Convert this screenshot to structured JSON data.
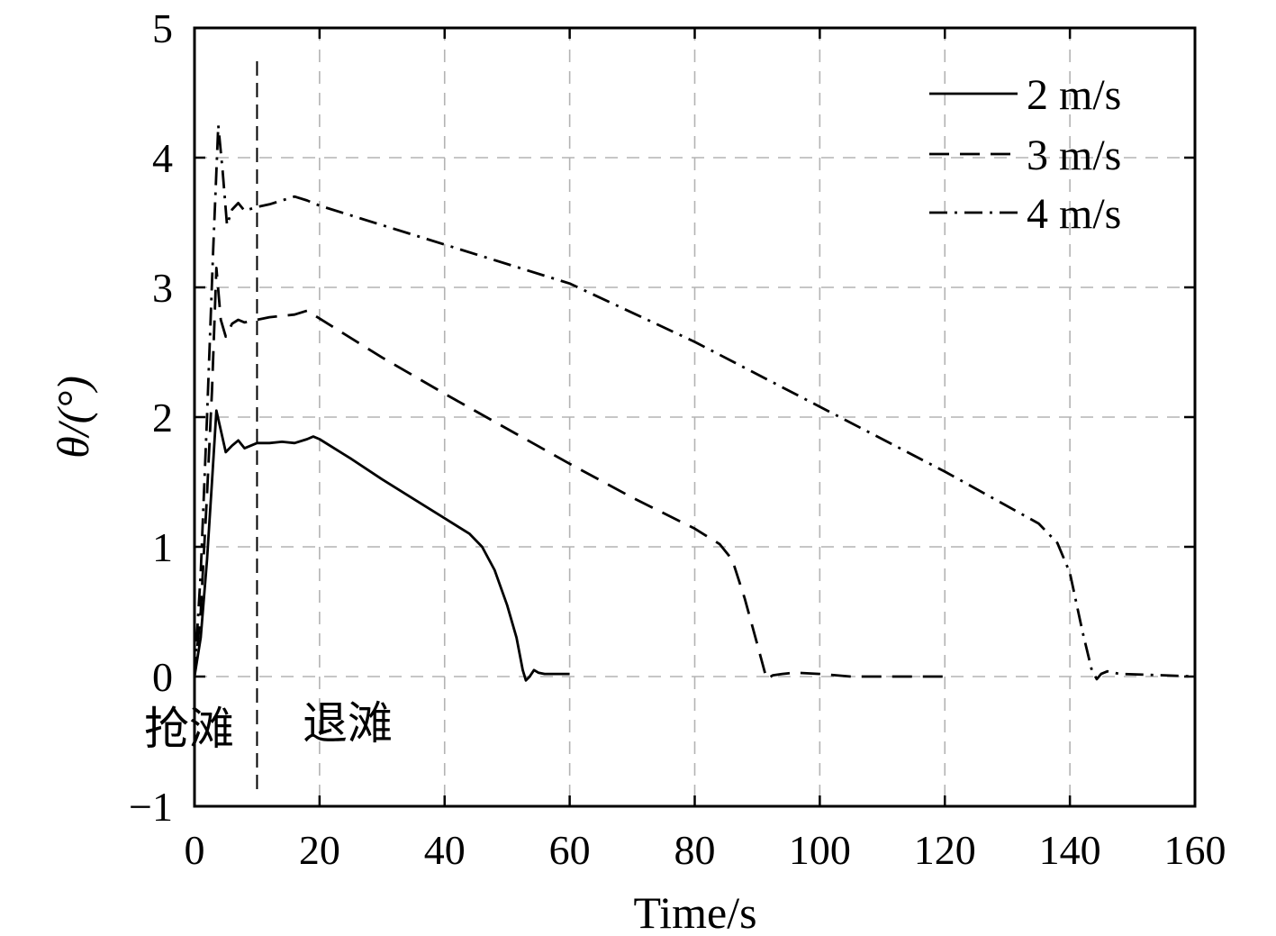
{
  "chart_data": {
    "type": "line",
    "title": "",
    "xlabel": "Time/s",
    "ylabel": "θ/(°)",
    "xlim": [
      0,
      160
    ],
    "ylim": [
      -1,
      5
    ],
    "xticks": [
      0,
      20,
      40,
      60,
      80,
      100,
      120,
      140,
      160
    ],
    "yticks": [
      -1,
      0,
      1,
      2,
      3,
      4,
      5
    ],
    "xtick_labels": [
      "0",
      "20",
      "40",
      "60",
      "80",
      "100",
      "120",
      "140",
      "160"
    ],
    "ytick_labels": [
      "−1",
      "0",
      "1",
      "2",
      "3",
      "4",
      "5"
    ],
    "grid": true,
    "legend_position": "top-right",
    "annotations": {
      "divider_x": 10,
      "phase_1_label": "抢滩",
      "phase_2_label": "退滩"
    },
    "series": [
      {
        "name": "2 m/s",
        "line_style": "solid",
        "color": "#000000",
        "points": [
          [
            0,
            0
          ],
          [
            1,
            0.3
          ],
          [
            2,
            0.9
          ],
          [
            2.8,
            1.5
          ],
          [
            3.5,
            2.05
          ],
          [
            4.2,
            1.9
          ],
          [
            5,
            1.73
          ],
          [
            6,
            1.78
          ],
          [
            7,
            1.82
          ],
          [
            8,
            1.76
          ],
          [
            10,
            1.8
          ],
          [
            12,
            1.8
          ],
          [
            14,
            1.81
          ],
          [
            16,
            1.8
          ],
          [
            18,
            1.83
          ],
          [
            19,
            1.85
          ],
          [
            20,
            1.83
          ],
          [
            25,
            1.68
          ],
          [
            30,
            1.52
          ],
          [
            35,
            1.37
          ],
          [
            40,
            1.22
          ],
          [
            44,
            1.1
          ],
          [
            46,
            1.0
          ],
          [
            48,
            0.82
          ],
          [
            50,
            0.55
          ],
          [
            51.5,
            0.3
          ],
          [
            52.5,
            0.05
          ],
          [
            53,
            -0.03
          ],
          [
            53.6,
            0.0
          ],
          [
            54.3,
            0.05
          ],
          [
            55,
            0.03
          ],
          [
            56,
            0.02
          ],
          [
            60,
            0.02
          ]
        ]
      },
      {
        "name": "3 m/s",
        "line_style": "dashed",
        "color": "#000000",
        "points": [
          [
            0,
            0
          ],
          [
            1,
            0.5
          ],
          [
            2,
            1.4
          ],
          [
            2.8,
            2.2
          ],
          [
            3.5,
            3.15
          ],
          [
            4.2,
            2.75
          ],
          [
            5,
            2.62
          ],
          [
            6,
            2.72
          ],
          [
            7,
            2.75
          ],
          [
            8,
            2.73
          ],
          [
            10,
            2.75
          ],
          [
            12,
            2.77
          ],
          [
            14,
            2.78
          ],
          [
            16,
            2.79
          ],
          [
            18,
            2.82
          ],
          [
            20,
            2.76
          ],
          [
            30,
            2.46
          ],
          [
            40,
            2.18
          ],
          [
            50,
            1.91
          ],
          [
            60,
            1.64
          ],
          [
            70,
            1.38
          ],
          [
            80,
            1.14
          ],
          [
            84,
            1.02
          ],
          [
            86,
            0.9
          ],
          [
            88,
            0.6
          ],
          [
            90,
            0.25
          ],
          [
            91.5,
            -0.02
          ],
          [
            92.5,
            0.01
          ],
          [
            94,
            0.02
          ],
          [
            96,
            0.03
          ],
          [
            100,
            0.02
          ],
          [
            105,
            0.0
          ],
          [
            110,
            0.0
          ],
          [
            120,
            0.0
          ]
        ]
      },
      {
        "name": "4 m/s",
        "line_style": "dashdot",
        "color": "#000000",
        "points": [
          [
            0,
            0
          ],
          [
            1,
            0.8
          ],
          [
            2,
            2.0
          ],
          [
            3,
            3.3
          ],
          [
            3.8,
            4.25
          ],
          [
            4.5,
            3.9
          ],
          [
            5.2,
            3.48
          ],
          [
            6,
            3.6
          ],
          [
            7,
            3.65
          ],
          [
            8,
            3.59
          ],
          [
            10,
            3.62
          ],
          [
            12,
            3.64
          ],
          [
            14,
            3.67
          ],
          [
            16,
            3.7
          ],
          [
            18,
            3.67
          ],
          [
            20,
            3.63
          ],
          [
            40,
            3.33
          ],
          [
            60,
            3.03
          ],
          [
            80,
            2.58
          ],
          [
            100,
            2.08
          ],
          [
            120,
            1.58
          ],
          [
            135,
            1.18
          ],
          [
            138,
            1.03
          ],
          [
            140,
            0.8
          ],
          [
            142,
            0.35
          ],
          [
            143.5,
            0.05
          ],
          [
            144.3,
            -0.02
          ],
          [
            145,
            0.02
          ],
          [
            146,
            0.04
          ],
          [
            148,
            0.02
          ],
          [
            155,
            0.01
          ],
          [
            160,
            0.0
          ]
        ]
      }
    ]
  }
}
